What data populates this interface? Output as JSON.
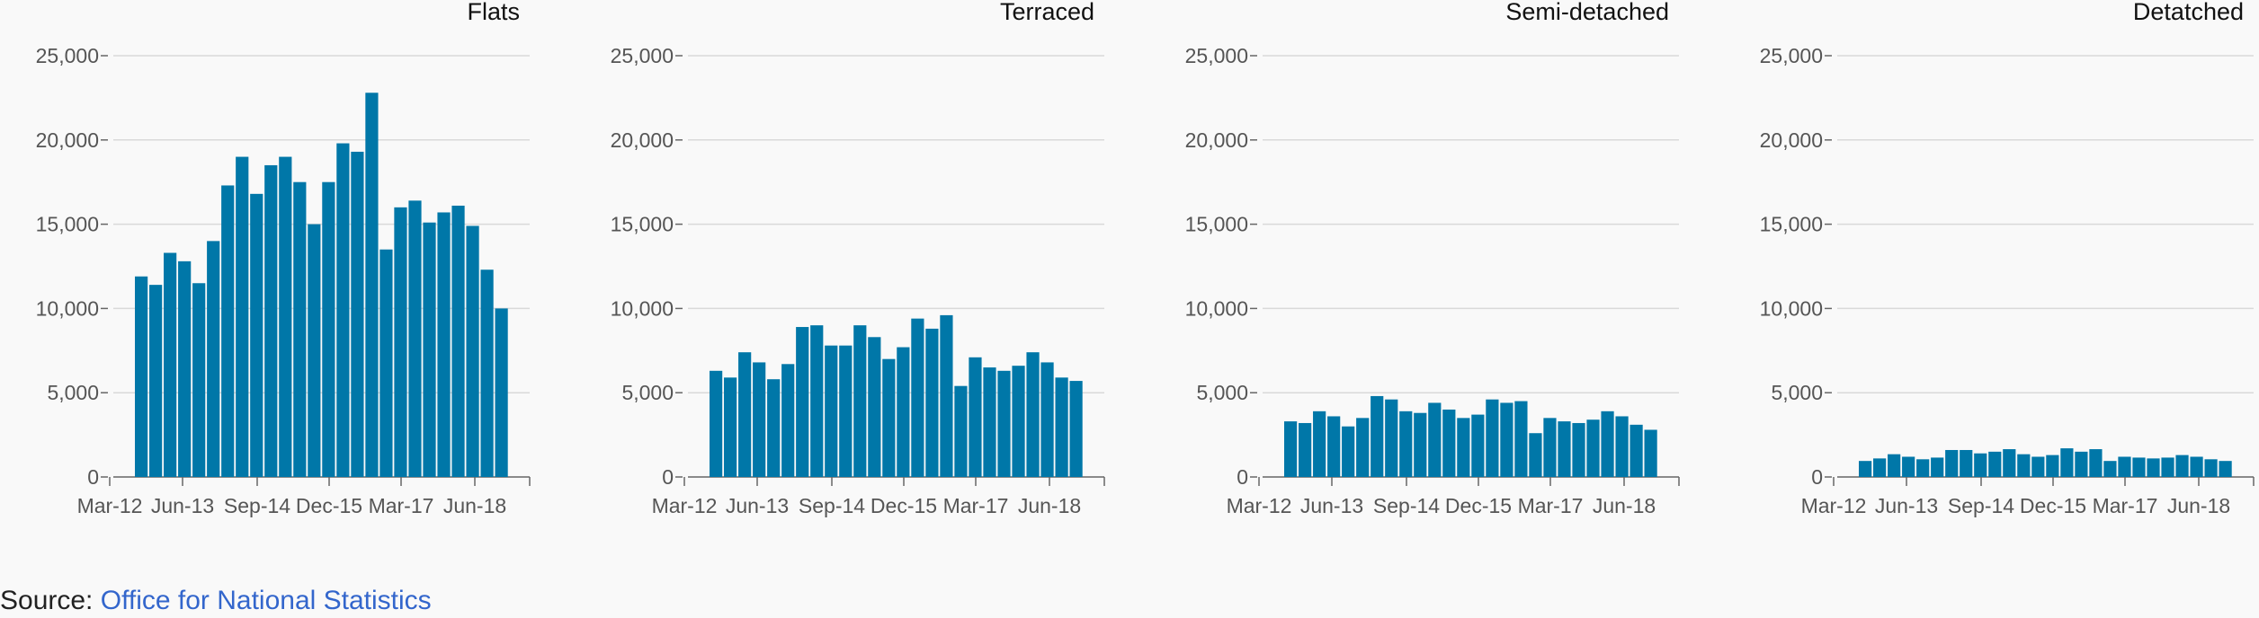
{
  "chart_data": {
    "type": "bar",
    "x_ticks": [
      "Mar-12",
      "Jun-13",
      "Sep-14",
      "Dec-15",
      "Mar-17",
      "Jun-18"
    ],
    "y_ticks": [
      "0",
      "5,000",
      "10,000",
      "15,000",
      "20,000",
      "25,000"
    ],
    "ylim": [
      0,
      25000
    ],
    "grid": true,
    "bar_color": "#0077a8",
    "panels": [
      {
        "title": "Flats",
        "values": [
          11900,
          11400,
          13300,
          12800,
          11500,
          14000,
          17300,
          19000,
          16800,
          18500,
          19000,
          17500,
          15000,
          17500,
          19800,
          19300,
          22800,
          13500,
          16000,
          16400,
          15100,
          15700,
          16100,
          14900,
          12300,
          10000
        ]
      },
      {
        "title": "Terraced",
        "values": [
          6300,
          5900,
          7400,
          6800,
          5800,
          6700,
          8900,
          9000,
          7800,
          7800,
          9000,
          8300,
          7000,
          7700,
          9400,
          8800,
          9600,
          5400,
          7100,
          6500,
          6300,
          6600,
          7400,
          6800,
          5900,
          5700
        ]
      },
      {
        "title": "Semi-detached",
        "values": [
          3300,
          3200,
          3900,
          3600,
          3000,
          3500,
          4800,
          4600,
          3900,
          3800,
          4400,
          4000,
          3500,
          3700,
          4600,
          4400,
          4500,
          2600,
          3500,
          3300,
          3200,
          3400,
          3900,
          3600,
          3100,
          2800
        ]
      },
      {
        "title": "Detatched",
        "values": [
          950,
          1100,
          1350,
          1200,
          1050,
          1150,
          1600,
          1600,
          1400,
          1500,
          1650,
          1350,
          1200,
          1300,
          1700,
          1500,
          1650,
          950,
          1200,
          1150,
          1100,
          1150,
          1300,
          1200,
          1050,
          950
        ]
      }
    ]
  },
  "source": {
    "label": "Source: ",
    "link_text": "Office for National Statistics"
  }
}
